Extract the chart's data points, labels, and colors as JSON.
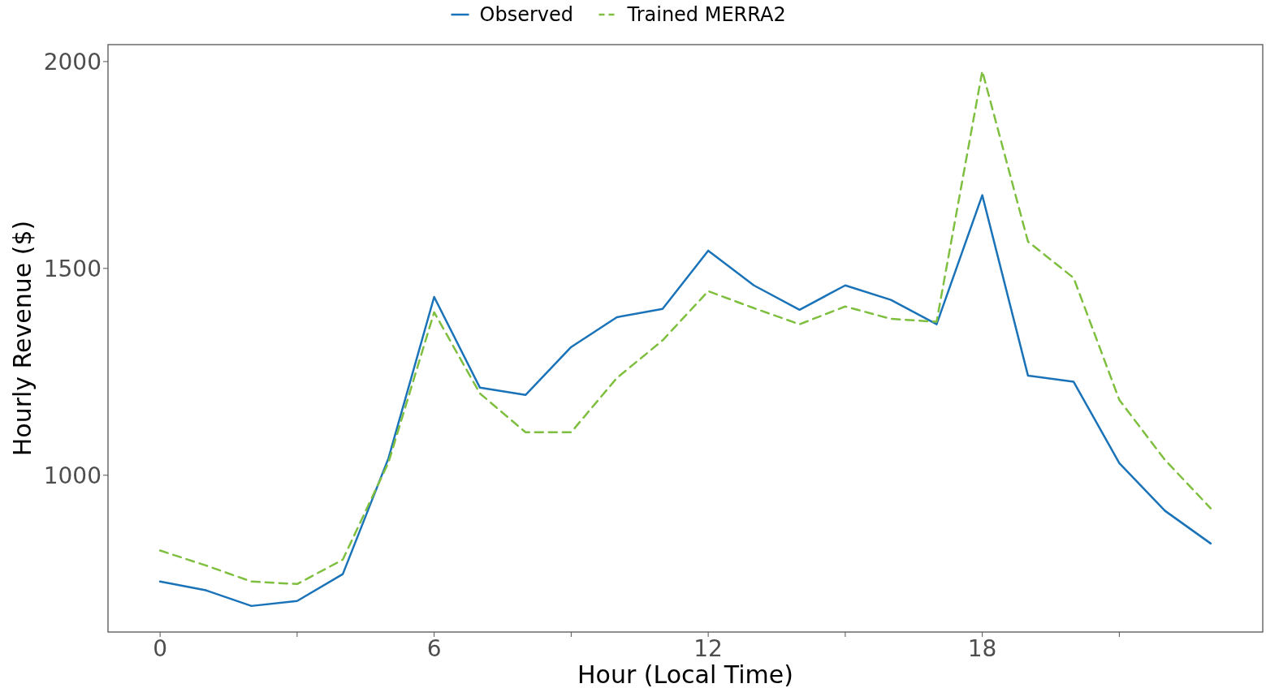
{
  "chart_data": {
    "type": "line",
    "xlabel": "Hour (Local Time)",
    "ylabel": "Hourly Revenue ($)",
    "x": [
      0,
      1,
      2,
      3,
      4,
      5,
      6,
      7,
      8,
      9,
      10,
      11,
      12,
      13,
      14,
      15,
      16,
      17,
      18,
      19,
      20,
      21,
      22,
      23
    ],
    "series": [
      {
        "name": "Observed",
        "color": "#1a73b8",
        "line_style": "solid",
        "values": [
          743,
          722,
          684,
          696,
          761,
          1041,
          1431,
          1212,
          1194,
          1310,
          1382,
          1402,
          1543,
          1459,
          1400,
          1459,
          1424,
          1365,
          1677,
          1241,
          1226,
          1029,
          914,
          835
        ]
      },
      {
        "name": "Trained MERRA2",
        "color": "#7fbf3f",
        "line_style": "dashed",
        "values": [
          818,
          782,
          743,
          737,
          796,
          1031,
          1394,
          1198,
          1104,
          1104,
          1235,
          1326,
          1445,
          1404,
          1365,
          1408,
          1378,
          1371,
          1977,
          1565,
          1477,
          1182,
          1037,
          920
        ]
      }
    ],
    "xlim": [
      -1.14,
      24.14
    ],
    "ylim": [
      621,
      2041
    ],
    "xticks": [
      0,
      {
        "value": 3,
        "label": null
      },
      6,
      {
        "value": 9,
        "label": null
      },
      12,
      {
        "value": 15,
        "label": null
      },
      18,
      {
        "value": 21,
        "label": null
      }
    ],
    "yticks": [
      1000,
      1500,
      2000
    ],
    "grid": false,
    "legend": "top"
  }
}
